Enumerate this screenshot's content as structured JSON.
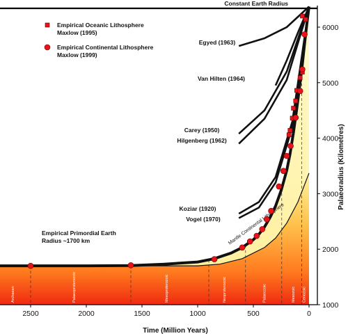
{
  "chart_data": {
    "type": "line",
    "x_axis": {
      "label": "Time (Million Years)",
      "ticks": [
        2500,
        2000,
        1500,
        1000,
        500,
        0
      ],
      "range": [
        2800,
        0
      ],
      "reversed": true
    },
    "y_axis": {
      "label": "Palaeoradius (Kilometres)",
      "ticks": [
        1000,
        2000,
        3000,
        4000,
        5000,
        6000
      ],
      "range": [
        1000,
        6400
      ],
      "position": "right"
    },
    "constant_radius": {
      "label": "Constant Earth Radius",
      "y": 6370
    },
    "primordial": {
      "label_line1": "Empirical Primordial Earth",
      "label_line2": "Radius ~1700 km",
      "value": 1700
    },
    "legend": [
      {
        "marker": "square",
        "line1": "Empirical Oceanic Lithosphere",
        "line2": "Maxlow (1995)",
        "color": "#e8141c"
      },
      {
        "marker": "circle",
        "line1": "Empirical Continental Lithosphere",
        "line2": "Maxlow (1999)",
        "color": "#e8141c"
      }
    ],
    "band_label": "Mantle Continental Lithosphere",
    "main_curve": [
      [
        2800,
        1700
      ],
      [
        2500,
        1700
      ],
      [
        2000,
        1700
      ],
      [
        1600,
        1705
      ],
      [
        1300,
        1730
      ],
      [
        1000,
        1770
      ],
      [
        850,
        1830
      ],
      [
        700,
        1930
      ],
      [
        600,
        2030
      ],
      [
        500,
        2170
      ],
      [
        450,
        2270
      ],
      [
        400,
        2400
      ],
      [
        350,
        2570
      ],
      [
        300,
        2780
      ],
      [
        250,
        3060
      ],
      [
        200,
        3420
      ],
      [
        170,
        3720
      ],
      [
        140,
        4100
      ],
      [
        110,
        4530
      ],
      [
        80,
        5000
      ],
      [
        60,
        5330
      ],
      [
        40,
        5700
      ],
      [
        20,
        6050
      ],
      [
        0,
        6370
      ]
    ],
    "lower_curve": [
      [
        2800,
        1700
      ],
      [
        1000,
        1700
      ],
      [
        800,
        1730
      ],
      [
        600,
        1830
      ],
      [
        400,
        2030
      ],
      [
        300,
        2200
      ],
      [
        200,
        2470
      ],
      [
        100,
        2850
      ],
      [
        0,
        3370
      ]
    ],
    "oceanic_points": [
      [
        60,
        6200
      ],
      [
        30,
        6140
      ],
      [
        60,
        5190
      ],
      [
        80,
        5090
      ],
      [
        110,
        4860
      ],
      [
        120,
        4670
      ],
      [
        140,
        4540
      ],
      [
        150,
        4360
      ],
      [
        170,
        4140
      ],
      [
        180,
        4060
      ]
    ],
    "continental_points": [
      [
        2500,
        1700
      ],
      [
        1600,
        1710
      ],
      [
        850,
        1820
      ],
      [
        600,
        2030
      ],
      [
        530,
        2140
      ],
      [
        470,
        2240
      ],
      [
        420,
        2360
      ],
      [
        380,
        2540
      ],
      [
        340,
        2690
      ],
      [
        270,
        3130
      ],
      [
        230,
        3410
      ],
      [
        200,
        3680
      ],
      [
        165,
        3860
      ],
      [
        120,
        4370
      ],
      [
        80,
        4850
      ],
      [
        60,
        5240
      ],
      [
        40,
        5870
      ]
    ],
    "author_curves": [
      {
        "label": "Egyed (1963)",
        "points": [
          [
            630,
            5660
          ],
          [
            400,
            5800
          ],
          [
            200,
            6000
          ],
          [
            0,
            6370
          ]
        ]
      },
      {
        "label": "Van Hilten (1964)",
        "points": [
          [
            300,
            4950
          ],
          [
            200,
            5400
          ],
          [
            100,
            5900
          ],
          [
            0,
            6370
          ]
        ]
      },
      {
        "label": "Carey (1950)",
        "points": [
          [
            630,
            4080
          ],
          [
            400,
            4500
          ],
          [
            200,
            5200
          ],
          [
            0,
            6370
          ]
        ]
      },
      {
        "label": "Hilgenberg (1962)",
        "points": [
          [
            630,
            3900
          ],
          [
            400,
            4350
          ],
          [
            200,
            5050
          ],
          [
            0,
            6370
          ]
        ]
      },
      {
        "label": "Koziar (1920)",
        "points": [
          [
            630,
            2640
          ],
          [
            450,
            2850
          ],
          [
            300,
            3300
          ],
          [
            150,
            4300
          ],
          [
            0,
            6370
          ]
        ]
      },
      {
        "label": "Vogel (1970)",
        "points": [
          [
            630,
            2560
          ],
          [
            450,
            2750
          ],
          [
            300,
            3200
          ],
          [
            150,
            4200
          ],
          [
            0,
            6370
          ]
        ]
      }
    ],
    "eras": [
      {
        "label": "Archaean",
        "x": 2650,
        "boundary": 2500
      },
      {
        "label": "Palaeoproterozoic",
        "x": 2100,
        "boundary": 1600
      },
      {
        "label": "Mesoproterozoic",
        "x": 1270,
        "boundary": 900
      },
      {
        "label": "Neoproterozoic",
        "x": 750,
        "boundary": 570
      },
      {
        "label": "Palaeozoic",
        "x": 390,
        "boundary": 245
      },
      {
        "label": "Mesozoic",
        "x": 130,
        "boundary": 65
      },
      {
        "label": "Cenozoic",
        "x": 33,
        "boundary": 0
      }
    ]
  }
}
